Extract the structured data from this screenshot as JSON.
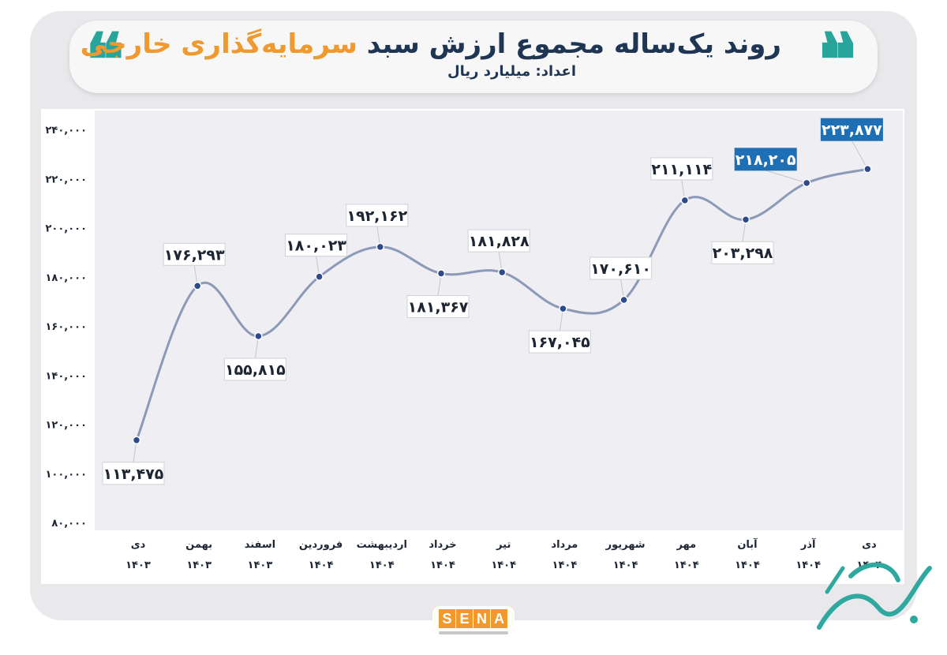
{
  "header": {
    "title_dark": "روند یک‌ساله مجموع ارزش سبد",
    "title_orange": "سرمایه‌گذاری خارجی",
    "subtitle": "اعداد: میلیارد ریال",
    "quote_glyph": "❝"
  },
  "colors": {
    "line": "#8c99b7",
    "point": "#2d4a8c",
    "highlight": "#1f6fb4",
    "title_dark": "#1e3553",
    "title_orange": "#f0992e",
    "quote": "#27a59a"
  },
  "logo": {
    "letters": [
      "S",
      "E",
      "N",
      "A"
    ]
  },
  "chart_data": {
    "type": "line",
    "categories": [
      [
        "دی",
        "۱۴۰۳"
      ],
      [
        "بهمن",
        "۱۴۰۳"
      ],
      [
        "اسفند",
        "۱۴۰۳"
      ],
      [
        "فروردین",
        "۱۴۰۴"
      ],
      [
        "اردیبهشت",
        "۱۴۰۴"
      ],
      [
        "خرداد",
        "۱۴۰۴"
      ],
      [
        "تیر",
        "۱۴۰۴"
      ],
      [
        "مرداد",
        "۱۴۰۴"
      ],
      [
        "شهریور",
        "۱۴۰۴"
      ],
      [
        "مهر",
        "۱۴۰۴"
      ],
      [
        "آبان",
        "۱۴۰۴"
      ],
      [
        "آذر",
        "۱۴۰۴"
      ],
      [
        "دی",
        "۱۴۰۴"
      ]
    ],
    "values": [
      113475,
      176293,
      155815,
      180023,
      192162,
      181367,
      181828,
      167045,
      170610,
      211114,
      203298,
      218205,
      223877
    ],
    "labels": [
      "۱۱۳,۴۷۵",
      "۱۷۶,۲۹۳",
      "۱۵۵,۸۱۵",
      "۱۸۰,۰۲۳",
      "۱۹۲,۱۶۲",
      "۱۸۱,۳۶۷",
      "۱۸۱,۸۲۸",
      "۱۶۷,۰۴۵",
      "۱۷۰,۶۱۰",
      "۲۱۱,۱۱۴",
      "۲۰۳,۲۹۸",
      "۲۱۸,۲۰۵",
      "۲۲۳,۸۷۷"
    ],
    "label_position": [
      "below",
      "above",
      "below",
      "above",
      "above",
      "below",
      "above",
      "below",
      "above",
      "above",
      "below",
      "above",
      "above"
    ],
    "highlighted": [
      11,
      12
    ],
    "y_ticks": [
      80000,
      100000,
      120000,
      140000,
      160000,
      180000,
      200000,
      220000,
      240000
    ],
    "y_tick_labels": [
      "۸۰,۰۰۰",
      "۱۰۰,۰۰۰",
      "۱۲۰,۰۰۰",
      "۱۴۰,۰۰۰",
      "۱۶۰,۰۰۰",
      "۱۸۰,۰۰۰",
      "۲۰۰,۰۰۰",
      "۲۲۰,۰۰۰",
      "۲۴۰,۰۰۰"
    ],
    "ylim": [
      80000,
      240000
    ],
    "grid": false
  }
}
